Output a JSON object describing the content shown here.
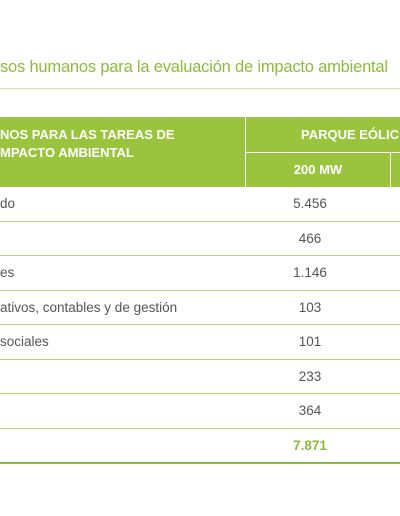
{
  "title": "sos humanos para la evaluación de impacto ambiental",
  "table": {
    "header": {
      "col1_line1": "NOS PARA LAS TAREAS DE",
      "col1_line2": "MPACTO AMBIENTAL",
      "group": "PARQUE EÓLIC",
      "sub": "200 MW"
    },
    "rows": [
      {
        "label": "do",
        "value": "5.456"
      },
      {
        "label": "",
        "value": "466"
      },
      {
        "label": "es",
        "value": "1.146"
      },
      {
        "label": "ativos, contables y de gestión",
        "value": "103"
      },
      {
        "label": "sociales",
        "value": "101"
      },
      {
        "label": "",
        "value": "233"
      },
      {
        "label": "",
        "value": "364"
      }
    ],
    "total": {
      "label": "",
      "value": "7.871"
    }
  },
  "colors": {
    "accent": "#9bc43e",
    "title": "#8cbc3a",
    "rule": "#b9d67c"
  }
}
